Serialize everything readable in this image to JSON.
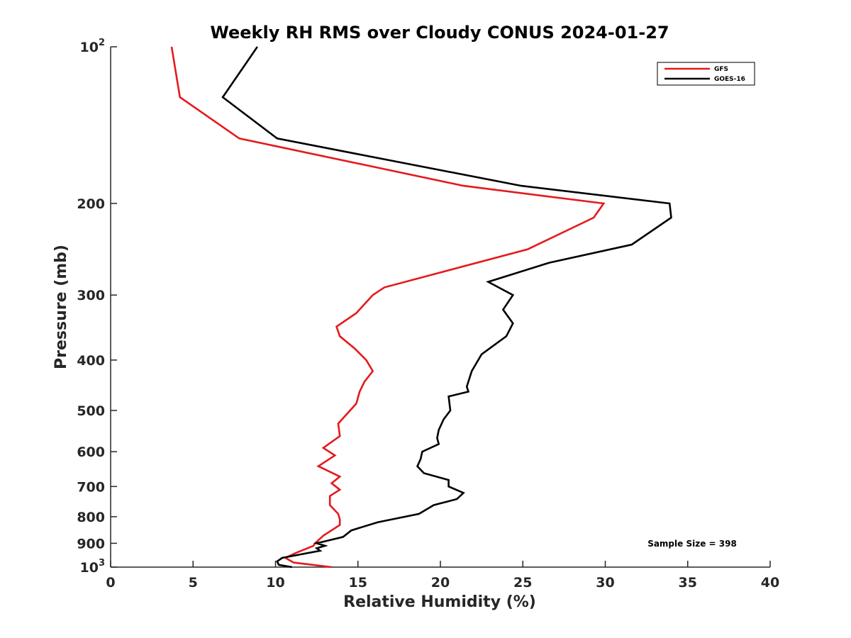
{
  "chart_data": {
    "type": "line",
    "title": "Weekly RH RMS over Cloudy CONUS 2024-01-27",
    "xlabel": "Relative Humidity (%)",
    "ylabel": "Pressure (mb)",
    "xlim": [
      0,
      40
    ],
    "ylim": [
      100,
      1000
    ],
    "y_scale": "log",
    "y_reversed": true,
    "grid": false,
    "x_ticks": [
      "0",
      "5",
      "10",
      "15",
      "20",
      "25",
      "30",
      "35",
      "40"
    ],
    "x_tick_values": [
      0,
      5,
      10,
      15,
      20,
      25,
      30,
      35,
      40
    ],
    "y_ticks": [
      {
        "value": 100,
        "base": "10",
        "exp": "2"
      },
      {
        "value": 200,
        "base": "200",
        "exp": ""
      },
      {
        "value": 300,
        "base": "300",
        "exp": ""
      },
      {
        "value": 400,
        "base": "400",
        "exp": ""
      },
      {
        "value": 500,
        "base": "500",
        "exp": ""
      },
      {
        "value": 600,
        "base": "600",
        "exp": ""
      },
      {
        "value": 700,
        "base": "700",
        "exp": ""
      },
      {
        "value": 800,
        "base": "800",
        "exp": ""
      },
      {
        "value": 900,
        "base": "900",
        "exp": ""
      },
      {
        "value": 1000,
        "base": "10",
        "exp": "3"
      }
    ],
    "legend_position": "top-right",
    "series": [
      {
        "name": "GFS",
        "color": "#e41a1c",
        "x": [
          3.7,
          4.2,
          7.8,
          21.4,
          29.9,
          29.3,
          25.3,
          16.6,
          15.9,
          14.9,
          13.7,
          13.9,
          14.8,
          15.5,
          15.9,
          15.4,
          15.1,
          14.9,
          13.8,
          13.9,
          12.9,
          13.6,
          12.6,
          13.9,
          13.4,
          13.9,
          13.3,
          13.3,
          13.8,
          13.9,
          13.9,
          12.9,
          12.4,
          12.3,
          11.2,
          10.6,
          11.1,
          13.4
        ],
        "y": [
          100,
          125,
          150,
          185,
          200,
          213,
          245,
          290,
          300,
          325,
          345,
          360,
          380,
          400,
          420,
          440,
          460,
          485,
          530,
          560,
          590,
          610,
          640,
          670,
          690,
          710,
          730,
          760,
          790,
          810,
          830,
          870,
          900,
          910,
          940,
          960,
          980,
          1000
        ]
      },
      {
        "name": "GOES-16",
        "color": "#000000",
        "x": [
          8.9,
          6.8,
          10.1,
          24.9,
          33.9,
          34.0,
          31.6,
          26.6,
          22.9,
          24.4,
          23.8,
          24.4,
          24.0,
          22.5,
          21.9,
          21.6,
          21.7,
          20.5,
          20.6,
          20.2,
          19.9,
          19.8,
          19.9,
          18.9,
          18.8,
          18.6,
          19.0,
          20.5,
          20.5,
          21.4,
          21.0,
          19.6,
          18.7,
          16.2,
          14.6,
          14.1,
          12.5,
          13.0,
          12.5,
          12.7,
          10.4,
          10.1,
          10.2,
          11.0
        ],
        "y": [
          100,
          125,
          150,
          185,
          200,
          213,
          240,
          260,
          283,
          300,
          320,
          340,
          360,
          390,
          420,
          450,
          460,
          470,
          500,
          520,
          545,
          565,
          580,
          600,
          620,
          640,
          660,
          680,
          700,
          720,
          740,
          760,
          790,
          820,
          850,
          875,
          900,
          910,
          920,
          930,
          960,
          975,
          990,
          1000
        ]
      }
    ],
    "annotations": [
      {
        "text": "Sample Size = 398"
      }
    ]
  }
}
